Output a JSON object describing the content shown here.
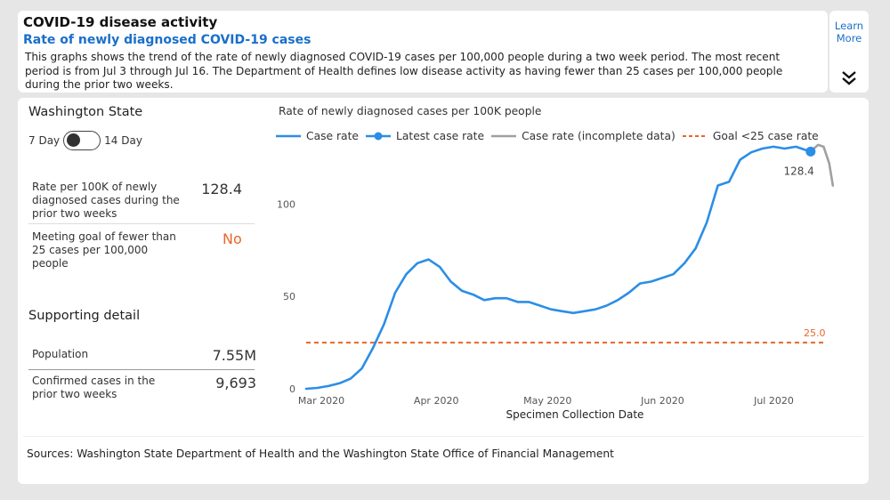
{
  "header": {
    "title": "COVID-19 disease activity",
    "subtitle": "Rate of newly diagnosed COVID-19 cases",
    "description": "This graphs shows the trend of the rate of newly diagnosed COVID-19 cases per 100,000 people during a two week period. The most recent period is from Jul 3 through Jul 16. The Department of Health defines low disease activity as having fewer than 25 cases per 100,000 people during the prior two weeks."
  },
  "learn_more": {
    "line1": "Learn",
    "line2": "More"
  },
  "left_panel": {
    "state": "Washington State",
    "toggle_left": "7 Day",
    "toggle_right": "14 Day",
    "rate_label": "Rate per 100K of newly diagnosed cases during the prior two weeks",
    "rate_value": "128.4",
    "goal_label": "Meeting goal of fewer than 25 cases per 100,000 people",
    "goal_value": "No",
    "supporting_title": "Supporting detail",
    "population_label": "Population",
    "population_value": "7.55M",
    "confirmed_label": "Confirmed cases in the prior two weeks",
    "confirmed_value": "9,693"
  },
  "sources": "Sources: Washington State Department of Health and the Washington State Office of Financial Management",
  "colors": {
    "case_rate": "#2b8ee6",
    "incomplete": "#a0a0a0",
    "goal": "#e8662a",
    "no_value": "#e8662a"
  },
  "chart_data": {
    "type": "line",
    "title": "Rate of newly diagnosed cases per 100K people",
    "xlabel": "Specimen Collection Date",
    "ylabel": "",
    "ylim": [
      0,
      130
    ],
    "yticks": [
      0,
      50,
      100
    ],
    "x_ticks": [
      {
        "label": "Mar 2020",
        "day": 0
      },
      {
        "label": "Apr 2020",
        "day": 31
      },
      {
        "label": "May 2020",
        "day": 61
      },
      {
        "label": "Jun 2020",
        "day": 92
      },
      {
        "label": "Jul 2020",
        "day": 122
      }
    ],
    "legend": [
      "Case rate",
      "Latest case rate",
      "Case rate (incomplete data)",
      "Goal <25 case rate"
    ],
    "series": [
      {
        "name": "Case rate",
        "x_days": [
          0,
          3,
          6,
          9,
          12,
          15,
          18,
          21,
          24,
          27,
          30,
          33,
          36,
          39,
          42,
          45,
          48,
          51,
          54,
          57,
          60,
          63,
          66,
          69,
          72,
          75,
          78,
          81,
          84,
          87,
          90,
          93,
          96,
          99,
          102,
          105,
          108,
          111,
          114,
          117,
          120,
          123,
          126,
          129,
          132,
          135,
          136
        ],
        "values": [
          0,
          0.5,
          1.5,
          3,
          5.5,
          11,
          22,
          35,
          52,
          62,
          68,
          70,
          66,
          58,
          53,
          51,
          48,
          49,
          49,
          47,
          47,
          45,
          43,
          42,
          41,
          42,
          43,
          45,
          48,
          52,
          57,
          58,
          60,
          62,
          68,
          76,
          90,
          110,
          112,
          124,
          128,
          130,
          131,
          130,
          131,
          129,
          128.4
        ]
      },
      {
        "name": "Case rate (incomplete data)",
        "x_days": [
          136,
          138,
          139.5,
          141,
          142
        ],
        "values": [
          128.4,
          132,
          131,
          122,
          110
        ]
      }
    ],
    "latest": {
      "day": 136,
      "value": 128.4,
      "label": "128.4"
    },
    "goal": {
      "value": 25,
      "label": "25.0"
    }
  }
}
